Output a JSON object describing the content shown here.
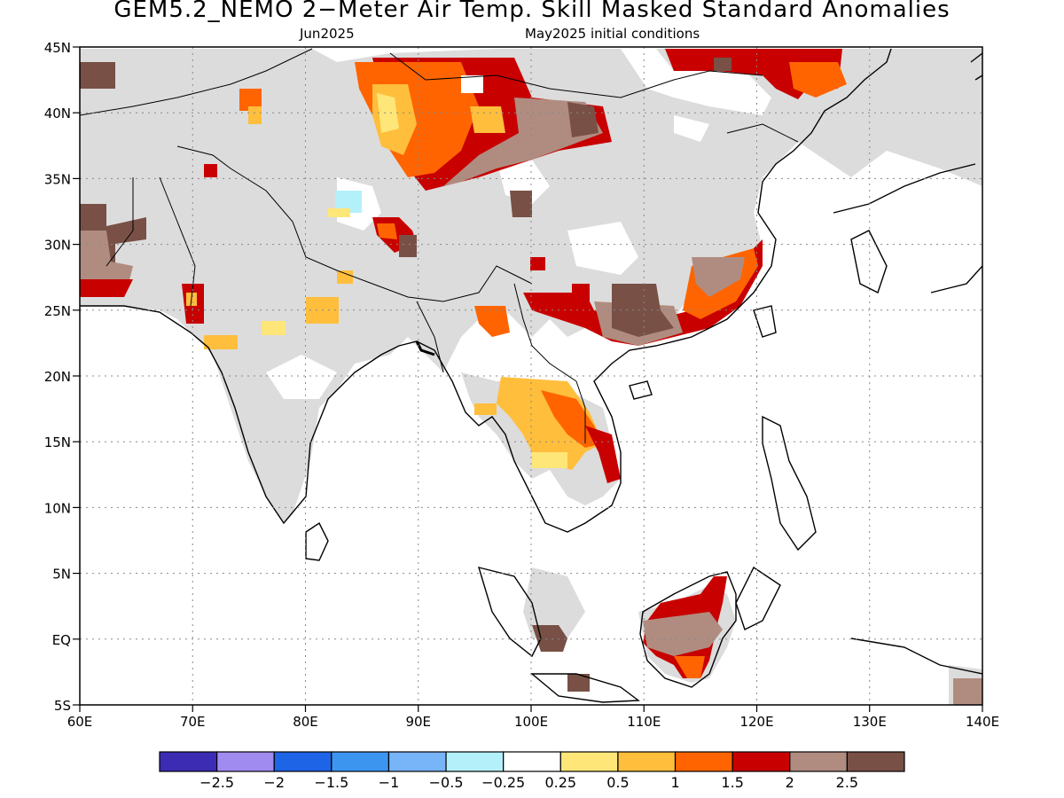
{
  "title": "GEM5.2_NEMO 2−Meter Air Temp. Skill Masked Standard Anomalies",
  "subtitle_left": "Jun2025",
  "subtitle_right": "May2025 initial conditions",
  "map": {
    "lon_range": [
      60,
      140
    ],
    "lat_range": [
      -5,
      45
    ],
    "lat_labels": [
      "45N",
      "40N",
      "35N",
      "30N",
      "25N",
      "20N",
      "15N",
      "10N",
      "5N",
      "EQ",
      "5S"
    ],
    "lon_labels": [
      "60E",
      "70E",
      "80E",
      "90E",
      "100E",
      "110E",
      "120E",
      "130E",
      "140E"
    ],
    "masked_color": "#dcdcdc",
    "coastline_color": "#000000"
  },
  "colorbar": {
    "colors": [
      "#3c2cb4",
      "#a08cf0",
      "#1e64e6",
      "#3c96f0",
      "#78b4f8",
      "#b4f0fa",
      "#ffffff",
      "#ffe678",
      "#ffbe3c",
      "#ff6400",
      "#c80000",
      "#b08c80",
      "#785046"
    ],
    "labels": [
      "−2.5",
      "−2",
      "−1.5",
      "−1",
      "−0.5",
      "−0.25",
      "0.25",
      "0.5",
      "1",
      "1.5",
      "2",
      "2.5"
    ]
  }
}
